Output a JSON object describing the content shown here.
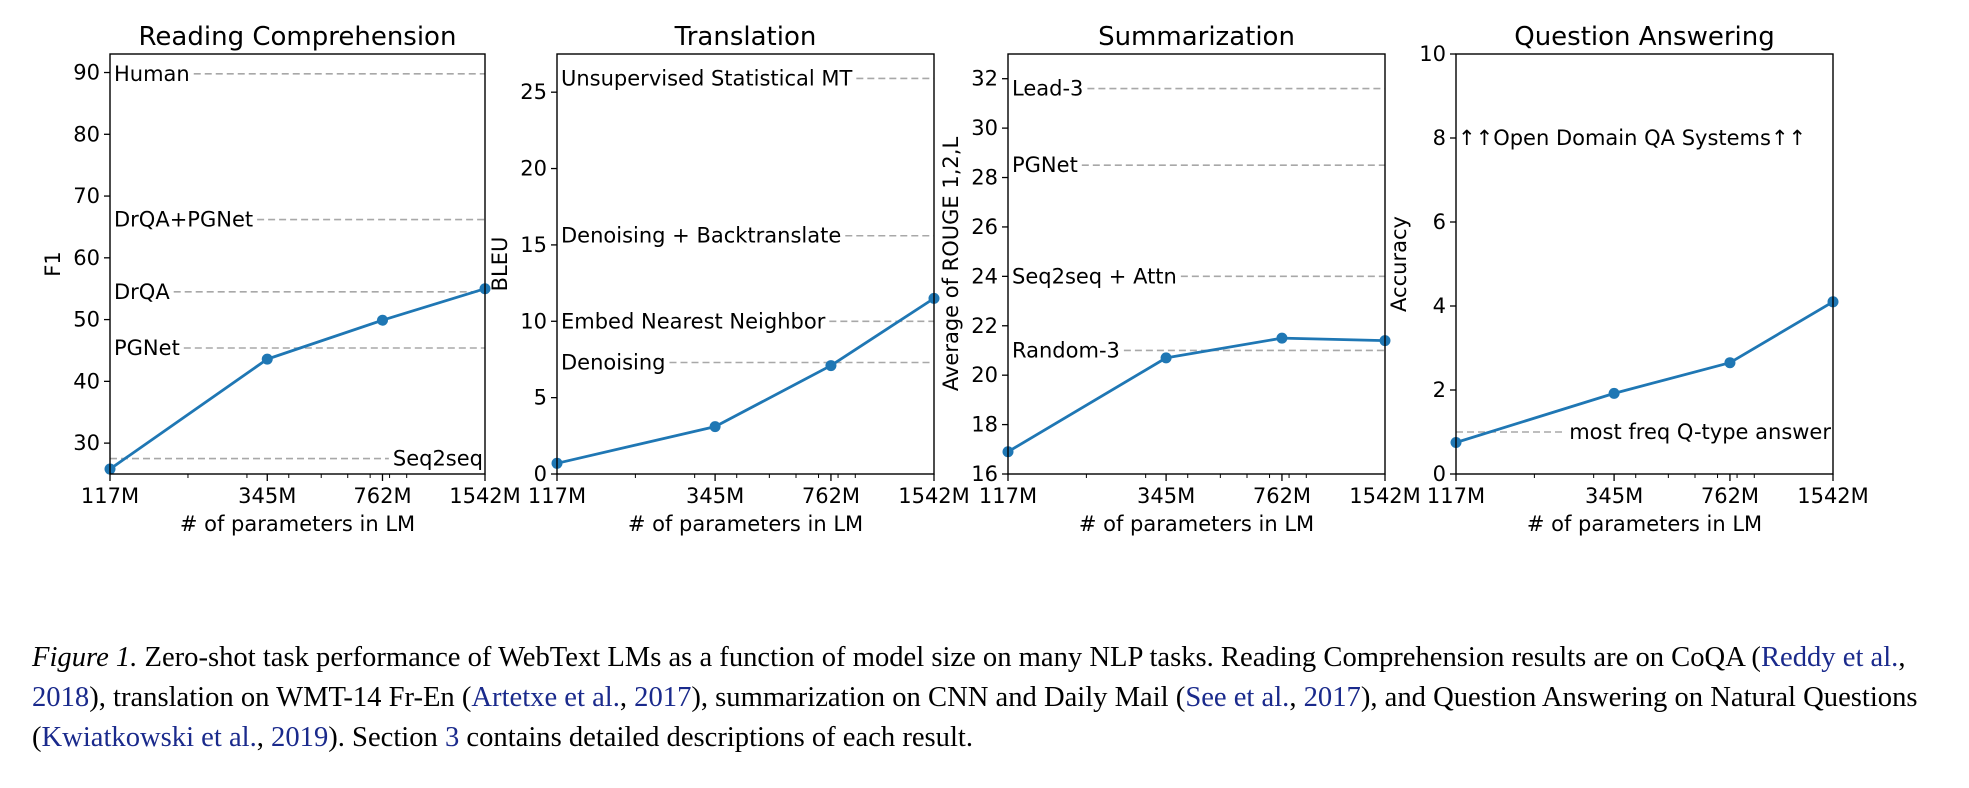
{
  "chart_data": [
    {
      "type": "line",
      "title": "Reading Comprehension",
      "xlabel": "# of parameters in LM",
      "ylabel": "F1",
      "x_categories": [
        "117M",
        "345M",
        "762M",
        "1542M"
      ],
      "x_scale": "log",
      "x_values": [
        117,
        345,
        762,
        1542
      ],
      "xlim": [
        117,
        1542
      ],
      "ylim": [
        25,
        93
      ],
      "yticks": [
        30,
        40,
        50,
        60,
        70,
        80,
        90
      ],
      "series": [
        {
          "values": [
            25.8,
            43.6,
            49.9,
            55.0
          ]
        }
      ],
      "reference_lines": [
        {
          "label": "Human",
          "value": 89.8,
          "label_side": "left"
        },
        {
          "label": "DrQA+PGNet",
          "value": 66.2,
          "label_side": "left"
        },
        {
          "label": "DrQA",
          "value": 54.5,
          "label_side": "left"
        },
        {
          "label": "PGNet",
          "value": 45.4,
          "label_side": "left"
        },
        {
          "label": "Seq2seq",
          "value": 27.5,
          "label_side": "right"
        }
      ]
    },
    {
      "type": "line",
      "title": "Translation",
      "xlabel": "# of parameters in LM",
      "ylabel": "BLEU",
      "x_categories": [
        "117M",
        "345M",
        "762M",
        "1542M"
      ],
      "x_scale": "log",
      "x_values": [
        117,
        345,
        762,
        1542
      ],
      "xlim": [
        117,
        1542
      ],
      "ylim": [
        0,
        27.5
      ],
      "yticks": [
        0,
        5,
        10,
        15,
        20,
        25
      ],
      "series": [
        {
          "values": [
            0.7,
            3.1,
            7.1,
            11.5
          ]
        }
      ],
      "reference_lines": [
        {
          "label": "Unsupervised Statistical MT",
          "value": 25.9,
          "label_side": "left"
        },
        {
          "label": "Denoising + Backtranslate",
          "value": 15.6,
          "label_side": "left"
        },
        {
          "label": "Embed Nearest Neighbor",
          "value": 10.0,
          "label_side": "left"
        },
        {
          "label": "Denoising",
          "value": 7.3,
          "label_side": "left"
        }
      ]
    },
    {
      "type": "line",
      "title": "Summarization",
      "xlabel": "# of parameters in LM",
      "ylabel": "Average of ROUGE 1,2,L",
      "x_categories": [
        "117M",
        "345M",
        "762M",
        "1542M"
      ],
      "x_scale": "log",
      "x_values": [
        117,
        345,
        762,
        1542
      ],
      "xlim": [
        117,
        1542
      ],
      "ylim": [
        16,
        33
      ],
      "yticks": [
        16,
        18,
        20,
        22,
        24,
        26,
        28,
        30,
        32
      ],
      "series": [
        {
          "values": [
            16.9,
            20.7,
            21.5,
            21.4
          ]
        }
      ],
      "reference_lines": [
        {
          "label": "Lead-3",
          "value": 31.6,
          "label_side": "left"
        },
        {
          "label": "PGNet",
          "value": 28.5,
          "label_side": "left"
        },
        {
          "label": "Seq2seq + Attn",
          "value": 24.0,
          "label_side": "left"
        },
        {
          "label": "Random-3",
          "value": 21.0,
          "label_side": "left"
        }
      ]
    },
    {
      "type": "line",
      "title": "Question Answering",
      "xlabel": "# of parameters in LM",
      "ylabel": "Accuracy",
      "x_categories": [
        "117M",
        "345M",
        "762M",
        "1542M"
      ],
      "x_scale": "log",
      "x_values": [
        117,
        345,
        762,
        1542
      ],
      "xlim": [
        117,
        1542
      ],
      "ylim": [
        0,
        10
      ],
      "yticks": [
        0,
        2,
        4,
        6,
        8,
        10
      ],
      "series": [
        {
          "values": [
            0.75,
            1.92,
            2.65,
            4.1
          ]
        }
      ],
      "reference_lines": [
        {
          "label": "most freq Q-type answer",
          "value": 1.0,
          "label_side": "right"
        }
      ],
      "annotations": [
        {
          "text": "↑↑Open Domain QA Systems↑↑",
          "value": 8
        }
      ]
    }
  ],
  "caption": {
    "figure_label": "Figure 1.",
    "part1": " Zero-shot task performance of WebText LMs as a function of model size on many NLP tasks. Reading Comprehension results are on CoQA (",
    "cite1_author": "Reddy et al.",
    "cite1_year": "2018",
    "part2": "), translation on WMT-14 Fr-En (",
    "cite2_author": "Artetxe et al.",
    "cite2_year": "2017",
    "part3": "), summarization on CNN and Daily Mail (",
    "cite3_author": "See et al.",
    "cite3_year": "2017",
    "part4": "), and Question Answering on Natural Questions (",
    "cite4_author": "Kwiatkowski et al.",
    "cite4_year": "2019",
    "part5": "). Section ",
    "section_ref": "3",
    "part6": " contains detailed descriptions of each result."
  },
  "colors": {
    "series": "#1f77b4",
    "reference": "#a8a8a8",
    "citation": "#1a2a8c"
  }
}
